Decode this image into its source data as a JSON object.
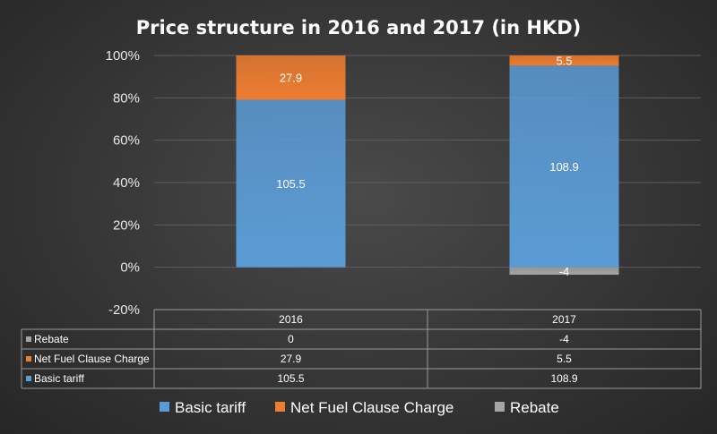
{
  "chart_data": {
    "type": "bar",
    "stacking": "percent",
    "title": "Price structure in 2016 and 2017 (in HKD)",
    "categories": [
      "2016",
      "2017"
    ],
    "series": [
      {
        "name": "Basic tariff",
        "values": [
          105.5,
          108.9
        ],
        "color": "#5b9bd5"
      },
      {
        "name": "Net Fuel Clause Charge",
        "values": [
          27.9,
          5.5
        ],
        "color": "#ed7d31"
      },
      {
        "name": "Rebate",
        "values": [
          0,
          -4
        ],
        "color": "#a5a5a5"
      }
    ],
    "table_rows": [
      "Rebate",
      "Net Fuel Clause Charge",
      "Basic tariff"
    ],
    "yticks": [
      "100%",
      "80%",
      "60%",
      "40%",
      "20%",
      "0%",
      "-20%"
    ],
    "ylim": [
      -20,
      100
    ],
    "grid": true,
    "legend": [
      "Basic tariff",
      "Net Fuel Clause Charge",
      "Rebate"
    ],
    "legend_position": "bottom",
    "data_table": true
  }
}
